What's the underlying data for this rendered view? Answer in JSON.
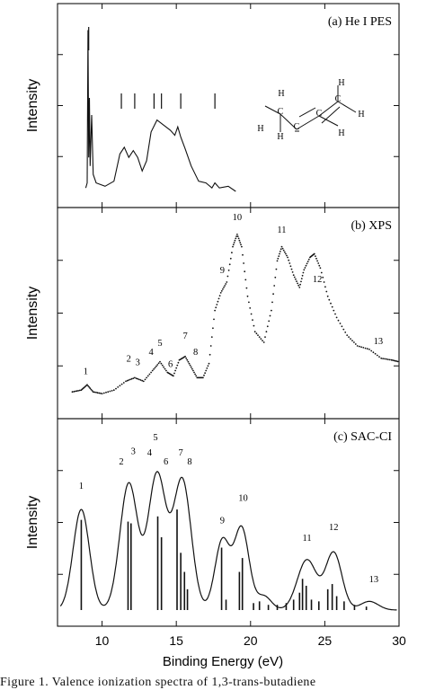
{
  "caption": "Figure 1.   Valence ionization spectra of 1,3-trans-butadiene",
  "chart_data": {
    "type": "line",
    "xlabel": "Binding Energy (eV)",
    "ylabel": "Intensity",
    "xlim": [
      7,
      30
    ],
    "xticks": [
      10,
      15,
      20,
      25,
      30
    ],
    "panels": [
      {
        "id": "a",
        "title": "(a) He I PES",
        "ylabel": "Intensity",
        "spectrum": [
          [
            8.9,
            0.02
          ],
          [
            9.0,
            0.05
          ],
          [
            9.05,
            0.95
          ],
          [
            9.1,
            0.2
          ],
          [
            9.15,
            0.55
          ],
          [
            9.2,
            0.15
          ],
          [
            9.3,
            0.45
          ],
          [
            9.4,
            0.1
          ],
          [
            9.6,
            0.05
          ],
          [
            10.2,
            0.03
          ],
          [
            10.8,
            0.06
          ],
          [
            11.2,
            0.22
          ],
          [
            11.5,
            0.26
          ],
          [
            11.8,
            0.2
          ],
          [
            12.1,
            0.24
          ],
          [
            12.4,
            0.2
          ],
          [
            12.7,
            0.12
          ],
          [
            13.0,
            0.18
          ],
          [
            13.3,
            0.35
          ],
          [
            13.7,
            0.42
          ],
          [
            14.0,
            0.4
          ],
          [
            14.3,
            0.38
          ],
          [
            14.6,
            0.36
          ],
          [
            14.9,
            0.33
          ],
          [
            15.1,
            0.38
          ],
          [
            15.3,
            0.32
          ],
          [
            15.6,
            0.25
          ],
          [
            16.0,
            0.15
          ],
          [
            16.5,
            0.06
          ],
          [
            17.0,
            0.05
          ],
          [
            17.4,
            0.02
          ],
          [
            17.6,
            0.05
          ],
          [
            17.9,
            0.02
          ],
          [
            18.5,
            0.03
          ],
          [
            19.0,
            0.0
          ]
        ],
        "markers": [
          9.1,
          11.3,
          12.2,
          13.5,
          14.0,
          15.3,
          17.6
        ],
        "molecule_atoms": [
          "H",
          "H",
          "C",
          "C",
          "C",
          "C",
          "H",
          "H",
          "H",
          "H"
        ]
      },
      {
        "id": "b",
        "title": "(b) XPS",
        "ylabel": "Intensity",
        "spectrum": [
          [
            8.0,
            0.06
          ],
          [
            8.6,
            0.07
          ],
          [
            9.0,
            0.1
          ],
          [
            9.4,
            0.06
          ],
          [
            10.0,
            0.05
          ],
          [
            10.8,
            0.07
          ],
          [
            11.6,
            0.12
          ],
          [
            12.2,
            0.14
          ],
          [
            12.8,
            0.12
          ],
          [
            13.4,
            0.18
          ],
          [
            13.9,
            0.23
          ],
          [
            14.4,
            0.17
          ],
          [
            14.8,
            0.15
          ],
          [
            15.2,
            0.24
          ],
          [
            15.6,
            0.26
          ],
          [
            16.0,
            0.2
          ],
          [
            16.4,
            0.14
          ],
          [
            16.8,
            0.14
          ],
          [
            17.2,
            0.22
          ],
          [
            17.6,
            0.52
          ],
          [
            18.0,
            0.62
          ],
          [
            18.4,
            0.68
          ],
          [
            18.8,
            0.88
          ],
          [
            19.1,
            0.95
          ],
          [
            19.4,
            0.88
          ],
          [
            19.8,
            0.6
          ],
          [
            20.3,
            0.4
          ],
          [
            20.9,
            0.34
          ],
          [
            21.4,
            0.52
          ],
          [
            21.8,
            0.8
          ],
          [
            22.1,
            0.88
          ],
          [
            22.5,
            0.82
          ],
          [
            22.9,
            0.72
          ],
          [
            23.3,
            0.65
          ],
          [
            23.6,
            0.75
          ],
          [
            24.0,
            0.82
          ],
          [
            24.3,
            0.84
          ],
          [
            24.7,
            0.76
          ],
          [
            25.2,
            0.6
          ],
          [
            25.8,
            0.48
          ],
          [
            26.5,
            0.38
          ],
          [
            27.2,
            0.32
          ],
          [
            28.0,
            0.3
          ],
          [
            28.8,
            0.25
          ],
          [
            29.5,
            0.24
          ],
          [
            30.0,
            0.23
          ]
        ],
        "peak_labels": [
          {
            "label": "1",
            "x": 8.9,
            "y": 0.16
          },
          {
            "label": "2",
            "x": 11.8,
            "y": 0.23
          },
          {
            "label": "3",
            "x": 12.4,
            "y": 0.21
          },
          {
            "label": "4",
            "x": 13.3,
            "y": 0.27
          },
          {
            "label": "5",
            "x": 13.9,
            "y": 0.32
          },
          {
            "label": "6",
            "x": 14.6,
            "y": 0.2
          },
          {
            "label": "7",
            "x": 15.6,
            "y": 0.36
          },
          {
            "label": "8",
            "x": 16.3,
            "y": 0.27
          },
          {
            "label": "9",
            "x": 18.1,
            "y": 0.73
          },
          {
            "label": "10",
            "x": 19.1,
            "y": 1.03
          },
          {
            "label": "11",
            "x": 22.1,
            "y": 0.96
          },
          {
            "label": "12",
            "x": 24.5,
            "y": 0.68
          },
          {
            "label": "13",
            "x": 28.6,
            "y": 0.33
          }
        ]
      },
      {
        "id": "c",
        "title": "(c) SAC-CI",
        "ylabel": "Intensity",
        "gaussians": [
          {
            "c": 8.6,
            "h": 0.58,
            "w": 0.55
          },
          {
            "c": 11.8,
            "h": 0.73,
            "w": 0.6
          },
          {
            "c": 13.7,
            "h": 0.78,
            "w": 0.6
          },
          {
            "c": 15.4,
            "h": 0.75,
            "w": 0.6
          },
          {
            "c": 18.1,
            "h": 0.4,
            "w": 0.5
          },
          {
            "c": 19.4,
            "h": 0.47,
            "w": 0.5
          },
          {
            "c": 20.9,
            "h": 0.08,
            "w": 0.5
          },
          {
            "c": 23.8,
            "h": 0.29,
            "w": 0.65
          },
          {
            "c": 25.6,
            "h": 0.33,
            "w": 0.55
          },
          {
            "c": 28.0,
            "h": 0.05,
            "w": 0.6
          }
        ],
        "sticks": [
          [
            8.6,
            0.52
          ],
          [
            11.75,
            0.51
          ],
          [
            11.95,
            0.5
          ],
          [
            13.75,
            0.54
          ],
          [
            14.0,
            0.42
          ],
          [
            15.05,
            0.58
          ],
          [
            15.3,
            0.33
          ],
          [
            15.55,
            0.22
          ],
          [
            15.75,
            0.12
          ],
          [
            18.05,
            0.36
          ],
          [
            18.35,
            0.06
          ],
          [
            19.25,
            0.22
          ],
          [
            19.45,
            0.3
          ],
          [
            20.2,
            0.04
          ],
          [
            20.6,
            0.05
          ],
          [
            21.2,
            0.03
          ],
          [
            21.8,
            0.03
          ],
          [
            22.4,
            0.04
          ],
          [
            22.9,
            0.06
          ],
          [
            23.3,
            0.1
          ],
          [
            23.5,
            0.18
          ],
          [
            23.75,
            0.14
          ],
          [
            24.1,
            0.06
          ],
          [
            24.6,
            0.05
          ],
          [
            25.2,
            0.12
          ],
          [
            25.5,
            0.15
          ],
          [
            25.8,
            0.08
          ],
          [
            26.3,
            0.05
          ],
          [
            27.0,
            0.03
          ],
          [
            27.8,
            0.02
          ]
        ],
        "peak_labels": [
          {
            "label": "1",
            "x": 8.6,
            "y": 0.7
          },
          {
            "label": "2",
            "x": 11.3,
            "y": 0.84
          },
          {
            "label": "3",
            "x": 12.1,
            "y": 0.9
          },
          {
            "label": "4",
            "x": 13.2,
            "y": 0.89
          },
          {
            "label": "5",
            "x": 13.6,
            "y": 0.98
          },
          {
            "label": "6",
            "x": 14.3,
            "y": 0.84
          },
          {
            "label": "7",
            "x": 15.3,
            "y": 0.89
          },
          {
            "label": "8",
            "x": 15.9,
            "y": 0.84
          },
          {
            "label": "9",
            "x": 18.1,
            "y": 0.5
          },
          {
            "label": "10",
            "x": 19.5,
            "y": 0.63
          },
          {
            "label": "11",
            "x": 23.8,
            "y": 0.4
          },
          {
            "label": "12",
            "x": 25.6,
            "y": 0.46
          },
          {
            "label": "13",
            "x": 28.3,
            "y": 0.16
          }
        ]
      }
    ]
  }
}
